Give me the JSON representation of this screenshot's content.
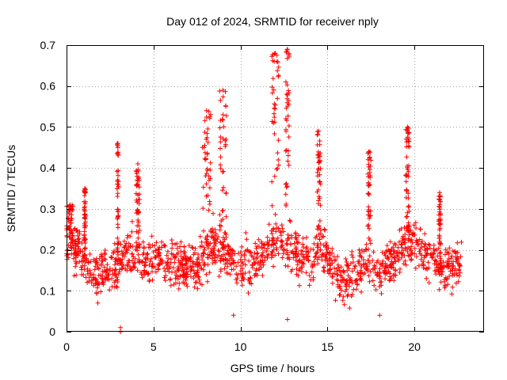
{
  "chart_data": {
    "type": "scatter",
    "title": "Day 012 of 2024, SRMTID for receiver nply",
    "xlabel": "GPS time / hours",
    "ylabel": "SRMTID / TECUs",
    "xlim": [
      0,
      24
    ],
    "ylim": [
      0,
      0.7
    ],
    "xticks": [
      0,
      5,
      10,
      15,
      20
    ],
    "xtick_labels": [
      "0",
      "5",
      "10",
      "15",
      "20"
    ],
    "yticks": [
      0,
      0.1,
      0.2,
      0.3,
      0.4,
      0.5,
      0.6,
      0.7
    ],
    "ytick_labels": [
      "0",
      "0.1",
      "0.2",
      "0.3",
      "0.4",
      "0.5",
      "0.6",
      "0.7"
    ],
    "grid": true,
    "marker": "plus",
    "series": [
      {
        "name": "SRMTID",
        "color": "#ff0000",
        "x_range": [
          0,
          22.7
        ],
        "baseline": [
          [
            0.0,
            0.22
          ],
          [
            0.5,
            0.2
          ],
          [
            1.0,
            0.17
          ],
          [
            1.5,
            0.14
          ],
          [
            2.0,
            0.14
          ],
          [
            2.5,
            0.15
          ],
          [
            3.0,
            0.16
          ],
          [
            3.5,
            0.2
          ],
          [
            4.0,
            0.2
          ],
          [
            4.5,
            0.17
          ],
          [
            5.0,
            0.18
          ],
          [
            5.5,
            0.18
          ],
          [
            6.0,
            0.16
          ],
          [
            6.5,
            0.16
          ],
          [
            7.0,
            0.16
          ],
          [
            7.5,
            0.16
          ],
          [
            8.0,
            0.2
          ],
          [
            8.5,
            0.21
          ],
          [
            9.0,
            0.2
          ],
          [
            9.5,
            0.18
          ],
          [
            10.0,
            0.16
          ],
          [
            10.5,
            0.17
          ],
          [
            11.0,
            0.18
          ],
          [
            11.5,
            0.2
          ],
          [
            12.0,
            0.22
          ],
          [
            12.5,
            0.22
          ],
          [
            13.0,
            0.2
          ],
          [
            13.5,
            0.18
          ],
          [
            14.0,
            0.18
          ],
          [
            14.5,
            0.2
          ],
          [
            15.0,
            0.19
          ],
          [
            15.5,
            0.14
          ],
          [
            16.0,
            0.12
          ],
          [
            16.5,
            0.14
          ],
          [
            17.0,
            0.16
          ],
          [
            17.5,
            0.17
          ],
          [
            18.0,
            0.14
          ],
          [
            18.5,
            0.16
          ],
          [
            19.0,
            0.19
          ],
          [
            19.5,
            0.22
          ],
          [
            20.0,
            0.22
          ],
          [
            20.5,
            0.2
          ],
          [
            21.0,
            0.18
          ],
          [
            21.5,
            0.16
          ],
          [
            22.0,
            0.15
          ],
          [
            22.7,
            0.18
          ]
        ],
        "spread": 0.06,
        "bursts": [
          {
            "x": [
              0.0,
              0.4
            ],
            "peak": 0.31
          },
          {
            "x": [
              1.0,
              1.1
            ],
            "peak": 0.35
          },
          {
            "x": [
              2.9,
              3.0
            ],
            "peak": 0.46
          },
          {
            "x": [
              4.0,
              4.2
            ],
            "peak": 0.41
          },
          {
            "x": [
              7.8,
              8.3
            ],
            "peak": 0.54
          },
          {
            "x": [
              8.8,
              9.2
            ],
            "peak": 0.59
          },
          {
            "x": [
              11.8,
              12.2
            ],
            "peak": 0.68
          },
          {
            "x": [
              12.6,
              12.8
            ],
            "peak": 0.69
          },
          {
            "x": [
              14.4,
              14.6
            ],
            "peak": 0.49
          },
          {
            "x": [
              17.3,
              17.5
            ],
            "peak": 0.44
          },
          {
            "x": [
              19.5,
              19.7
            ],
            "peak": 0.5
          },
          {
            "x": [
              21.4,
              21.5
            ],
            "peak": 0.34
          }
        ],
        "outliers": [
          {
            "x": 3.1,
            "y": 0.0
          },
          {
            "x": 3.1,
            "y": 0.01
          },
          {
            "x": 12.7,
            "y": 0.03
          },
          {
            "x": 9.6,
            "y": 0.04
          },
          {
            "x": 18.0,
            "y": 0.04
          },
          {
            "x": 1.8,
            "y": 0.07
          }
        ]
      }
    ]
  }
}
